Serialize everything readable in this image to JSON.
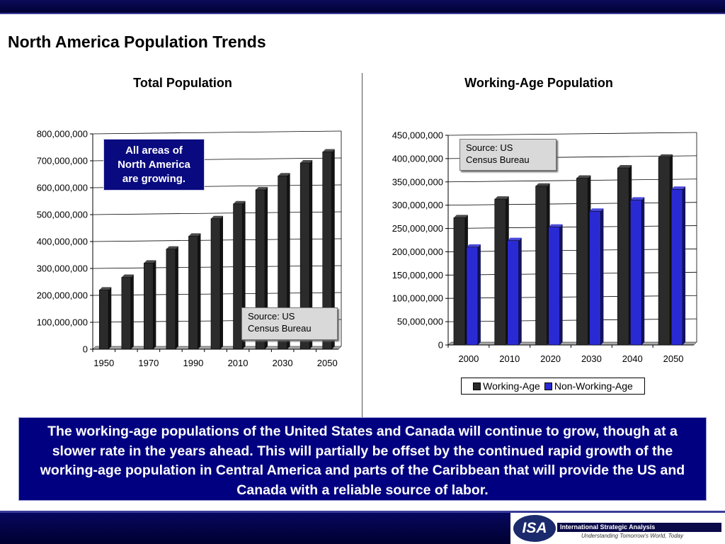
{
  "slide": {
    "title": "North America Population Trends"
  },
  "colors": {
    "dark_bar": "#2b2b2b",
    "blue_bar": "#2a2ad4",
    "summary_bg": "#000080",
    "header_bar": "#000033"
  },
  "chart_data": [
    {
      "type": "bar",
      "title": "Total Population",
      "categories": [
        "1950",
        "1960",
        "1970",
        "1980",
        "1990",
        "2000",
        "2010",
        "2020",
        "2030",
        "2040",
        "2050"
      ],
      "x_tick_labels": [
        "1950",
        "1970",
        "1990",
        "2010",
        "2030",
        "2050"
      ],
      "series": [
        {
          "values": [
            220000000,
            267000000,
            320000000,
            372000000,
            420000000,
            485000000,
            540000000,
            592000000,
            644000000,
            692000000,
            733000000
          ]
        }
      ],
      "ylim": [
        0,
        800000000
      ],
      "y_tick_labels": [
        "0",
        "100,000,000",
        "200,000,000",
        "300,000,000",
        "400,000,000",
        "500,000,000",
        "600,000,000",
        "700,000,000",
        "800,000,000"
      ],
      "grid": true,
      "annotations": [
        "All areas of North America are growing.",
        "Source: US Census Bureau"
      ]
    },
    {
      "type": "bar",
      "title": "Working-Age Population",
      "categories": [
        "2000",
        "2010",
        "2020",
        "2030",
        "2040",
        "2050"
      ],
      "series": [
        {
          "name": "Working-Age",
          "values": [
            273000000,
            313000000,
            341000000,
            358000000,
            380000000,
            403000000
          ]
        },
        {
          "name": "Non-Working-Age",
          "values": [
            210000000,
            224000000,
            253000000,
            287000000,
            311000000,
            334000000
          ]
        }
      ],
      "ylim": [
        0,
        450000000
      ],
      "y_tick_labels": [
        "0",
        "50,000,000",
        "100,000,000",
        "150,000,000",
        "200,000,000",
        "250,000,000",
        "300,000,000",
        "350,000,000",
        "400,000,000",
        "450,000,000"
      ],
      "grid": true,
      "legend": "bottom",
      "annotations": [
        "Source: US Census Bureau"
      ]
    }
  ],
  "callout": {
    "line1": "All areas of",
    "line2": "North America",
    "line3": "are growing."
  },
  "source_left": {
    "line1": "Source: US",
    "line2": "Census Bureau"
  },
  "source_right": {
    "line1": "Source: US",
    "line2": "Census Bureau"
  },
  "legend": {
    "item1": "Working-Age",
    "item2": "Non-Working-Age"
  },
  "summary": "The working-age populations of the United States and Canada will continue to grow, though at a slower rate in the years ahead.  This will partially be offset by the continued rapid growth of the working-age population in Central America and parts of the Caribbean that will provide the US and Canada with a reliable source of labor.",
  "footer": {
    "logo_text": "ISA",
    "company": "International Strategic Analysis",
    "tagline": "Understanding Tomorrow's World, Today"
  }
}
